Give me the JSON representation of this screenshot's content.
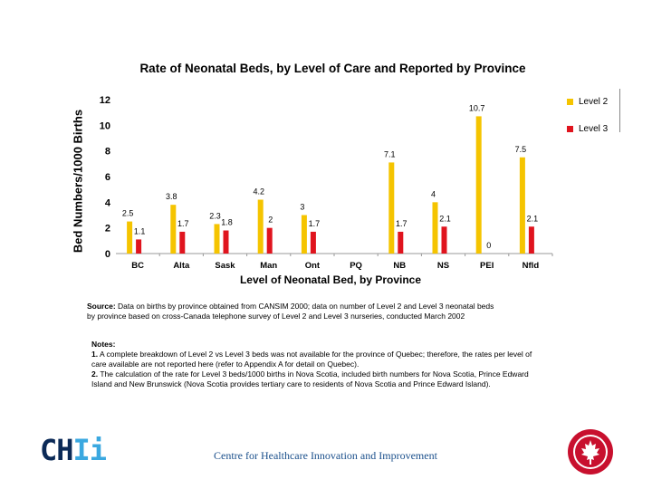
{
  "chart_data": {
    "type": "bar",
    "title": "Rate of Neonatal Beds, by Level of Care and Reported by Province",
    "xlabel": "Level of Neonatal Bed, by Province",
    "ylabel": "Bed Numbers/1000 Births",
    "ylim": [
      0,
      12
    ],
    "yticks": [
      "0",
      "2",
      "4",
      "6",
      "8",
      "10",
      "12"
    ],
    "categories": [
      "BC",
      "Alta",
      "Sask",
      "Man",
      "Ont",
      "PQ",
      "NB",
      "NS",
      "PEI",
      "Nfld"
    ],
    "series": [
      {
        "name": "Level 2",
        "color": "#f5c400",
        "values": [
          2.5,
          3.8,
          2.3,
          4.2,
          3,
          null,
          7.1,
          4,
          10.7,
          7.5
        ],
        "labels": [
          "2.5",
          "3.8",
          "2.3",
          "4.2",
          "3",
          "",
          "7.1",
          "4",
          "10.7",
          "7.5"
        ]
      },
      {
        "name": "Level 3",
        "color": "#e0141e",
        "values": [
          1.1,
          1.7,
          1.8,
          2,
          1.7,
          null,
          1.7,
          2.1,
          0,
          2.1
        ],
        "labels": [
          "1.1",
          "1.7",
          "1.8",
          "2",
          "1.7",
          "",
          "1.7",
          "2.1",
          "0",
          "2.1"
        ]
      }
    ],
    "legend_position": "right",
    "grid": false
  },
  "source": {
    "label": "Source:",
    "text": "Data on births by province obtained from CANSIM 2000; data on number of Level 2 and Level 3 neonatal beds by province based on cross-Canada telephone survey of Level 2 and Level 3 nurseries, conducted March 2002"
  },
  "notes": {
    "heading": "Notes:",
    "items": [
      {
        "num": "1.",
        "text": "A complete breakdown of Level 2 vs Level 3 beds was not available for the province of Quebec; therefore, the rates per level of care available are not reported here (refer to Appendix A for detail on Quebec)."
      },
      {
        "num": "2.",
        "text": "The calculation of the rate for Level 3 beds/1000 births in Nova Scotia, included birth numbers for Nova Scotia, Prince Edward Island and New Brunswick (Nova Scotia provides tertiary care to residents of Nova Scotia and Prince Edward Island)."
      }
    ]
  },
  "footer": {
    "logo_main": "CH",
    "logo_accent": "Ii",
    "org_name": "Centre for Healthcare Innovation and Improvement"
  }
}
